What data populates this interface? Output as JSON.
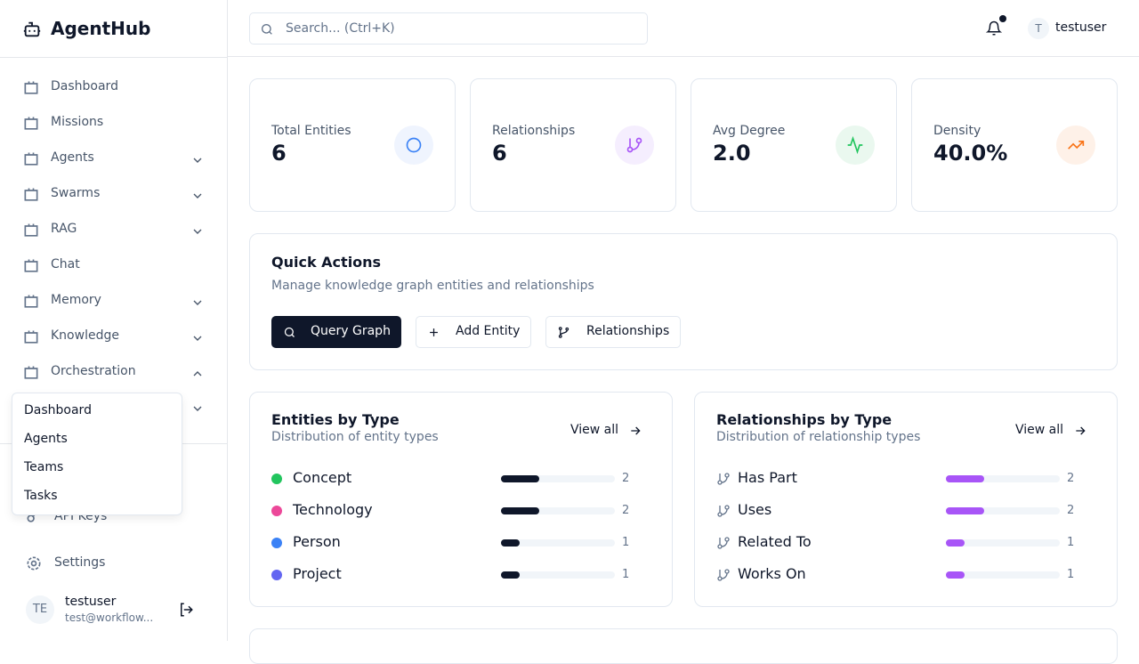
{
  "sidebar": {
    "brand": "AgentHub",
    "nav": [
      {
        "label": "Dashboard",
        "chevron": "none"
      },
      {
        "label": "Missions",
        "chevron": "none"
      },
      {
        "label": "Agents",
        "chevron": "down"
      },
      {
        "label": "Swarms",
        "chevron": "down"
      },
      {
        "label": "RAG",
        "chevron": "down"
      },
      {
        "label": "Chat",
        "chevron": "none"
      },
      {
        "label": "Memory",
        "chevron": "down"
      },
      {
        "label": "Knowledge",
        "chevron": "down"
      },
      {
        "label": "Orchestration",
        "chevron": "up"
      }
    ],
    "dropdown": [
      "Dashboard",
      "Agents",
      "Teams",
      "Tasks"
    ],
    "bottom": [
      "API Keys",
      "Settings"
    ],
    "user": {
      "avatar": "TE",
      "name": "testuser",
      "email": "test@workflow..."
    }
  },
  "topbar": {
    "search": "Search... (Ctrl+K)",
    "avatar": "T",
    "user": "testuser"
  },
  "stats": [
    {
      "label": "Total Entities",
      "value": "6",
      "color": "#3b82f6",
      "bg": "#eff4fe"
    },
    {
      "label": "Relationships",
      "value": "6",
      "color": "#a855f7",
      "bg": "#f5eefe"
    },
    {
      "label": "Avg Degree",
      "value": "2.0",
      "color": "#22c55e",
      "bg": "#eaf8ef"
    },
    {
      "label": "Density",
      "value": "40.0%",
      "color": "#f97316",
      "bg": "#fef1e8"
    }
  ],
  "quick_actions": {
    "title": "Quick Actions",
    "subtitle": "Manage knowledge graph entities and relationships",
    "buttons": [
      "Query Graph",
      "Add Entity",
      "Relationships"
    ]
  },
  "panels": [
    {
      "title": "Entities by Type",
      "subtitle": "Distribution of entity types",
      "link": "View all",
      "bar_color": "#0f172a",
      "items": [
        {
          "name": "Concept",
          "count": 2,
          "color": "#22c55e"
        },
        {
          "name": "Technology",
          "count": 2,
          "color": "#ec4899"
        },
        {
          "name": "Person",
          "count": 1,
          "color": "#3b82f6"
        },
        {
          "name": "Project",
          "count": 1,
          "color": "#6366f1"
        }
      ]
    },
    {
      "title": "Relationships by Type",
      "subtitle": "Distribution of relationship types",
      "link": "View all",
      "bar_color": "#a855f7",
      "items": [
        {
          "name": "Has Part",
          "count": 2
        },
        {
          "name": "Uses",
          "count": 2
        },
        {
          "name": "Related To",
          "count": 1
        },
        {
          "name": "Works On",
          "count": 1
        }
      ]
    }
  ]
}
